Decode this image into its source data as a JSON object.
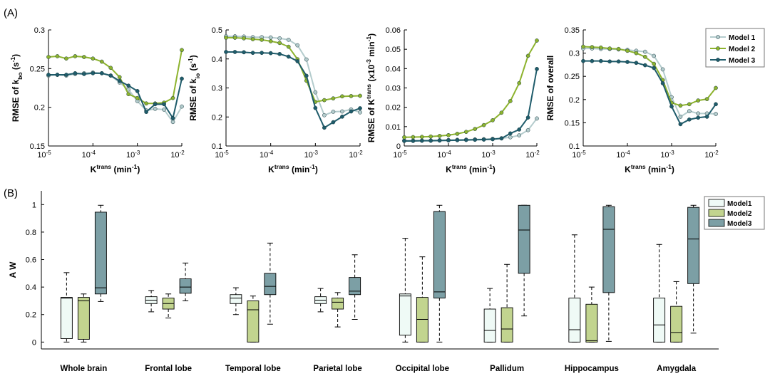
{
  "figure": {
    "panel_a_label": "(A)",
    "panel_b_label": "(B)"
  },
  "chart_data": [
    {
      "type": "line",
      "ylabel": "RMSE of k_bo (s^-1)",
      "xlabel": "K^trans (min^-1)",
      "xscale": "log",
      "xlim": [
        1e-05,
        0.01
      ],
      "ylim": [
        0.15,
        0.3
      ],
      "yticks": [
        "0.15",
        "0.2",
        "0.25",
        "0.3"
      ],
      "xticks": [
        "10^-5",
        "10^-4",
        "10^-3",
        "10^-2"
      ],
      "x": [
        1e-05,
        1.585e-05,
        2.512e-05,
        3.981e-05,
        6.31e-05,
        0.0001,
        0.0001585,
        0.0002512,
        0.0003981,
        0.000631,
        0.001,
        0.001585,
        0.002512,
        0.003981,
        0.00631,
        0.01
      ],
      "series": [
        {
          "name": "Model 1",
          "color": "#b4cccd",
          "values": [
            0.241,
            0.242,
            0.241,
            0.243,
            0.244,
            0.245,
            0.244,
            0.241,
            0.232,
            0.223,
            0.208,
            0.196,
            0.198,
            0.197,
            0.181,
            0.201
          ]
        },
        {
          "name": "Model 2",
          "color": "#8db32e",
          "values": [
            0.265,
            0.266,
            0.263,
            0.266,
            0.265,
            0.263,
            0.259,
            0.251,
            0.239,
            0.217,
            0.212,
            0.205,
            0.205,
            0.206,
            0.212,
            0.274
          ]
        },
        {
          "name": "Model 3",
          "color": "#1f5c6b",
          "values": [
            0.242,
            0.242,
            0.242,
            0.244,
            0.243,
            0.244,
            0.244,
            0.241,
            0.234,
            0.228,
            0.221,
            0.194,
            0.204,
            0.204,
            0.186,
            0.237
          ]
        }
      ]
    },
    {
      "type": "line",
      "ylabel": "RMSE of k_io (s^-1)",
      "xlabel": "K^trans (min^-1)",
      "xscale": "log",
      "xlim": [
        1e-05,
        0.01
      ],
      "ylim": [
        0.1,
        0.5
      ],
      "yticks": [
        "0.1",
        "0.2",
        "0.3",
        "0.4",
        "0.5"
      ],
      "xticks": [
        "10^-5",
        "10^-4",
        "10^-3",
        "10^-2"
      ],
      "x": [
        1e-05,
        1.585e-05,
        2.512e-05,
        3.981e-05,
        6.31e-05,
        0.0001,
        0.0001585,
        0.0002512,
        0.0003981,
        0.000631,
        0.001,
        0.001585,
        0.002512,
        0.003981,
        0.00631,
        0.01
      ],
      "series": [
        {
          "name": "Model 1",
          "color": "#b4cccd",
          "values": [
            0.478,
            0.478,
            0.477,
            0.475,
            0.475,
            0.474,
            0.471,
            0.466,
            0.447,
            0.398,
            0.285,
            0.206,
            0.218,
            0.219,
            0.226,
            0.216
          ]
        },
        {
          "name": "Model 2",
          "color": "#8db32e",
          "values": [
            0.473,
            0.473,
            0.471,
            0.468,
            0.466,
            0.461,
            0.455,
            0.442,
            0.399,
            0.325,
            0.252,
            0.258,
            0.264,
            0.271,
            0.272,
            0.273
          ]
        },
        {
          "name": "Model 3",
          "color": "#1f5c6b",
          "values": [
            0.424,
            0.424,
            0.423,
            0.421,
            0.421,
            0.42,
            0.417,
            0.408,
            0.392,
            0.342,
            0.231,
            0.163,
            0.182,
            0.201,
            0.219,
            0.23
          ]
        }
      ]
    },
    {
      "type": "line",
      "ylabel": "RMSE of K^trans (x10^-3 min^-1)",
      "xlabel": "K^trans (min^-1)",
      "xscale": "log",
      "xlim": [
        1e-05,
        0.01
      ],
      "ylim": [
        0,
        0.06
      ],
      "yticks": [
        "0",
        "0.01",
        "0.02",
        "0.03",
        "0.04",
        "0.05",
        "0.06"
      ],
      "xticks": [
        "10^-5",
        "10^-4",
        "10^-3",
        "10^-2"
      ],
      "x": [
        1e-05,
        1.585e-05,
        2.512e-05,
        3.981e-05,
        6.31e-05,
        0.0001,
        0.0001585,
        0.0002512,
        0.0003981,
        0.000631,
        0.001,
        0.001585,
        0.002512,
        0.003981,
        0.00631,
        0.01
      ],
      "series": [
        {
          "name": "Model 1",
          "color": "#b4cccd",
          "values": [
            0.0028,
            0.0028,
            0.0028,
            0.0029,
            0.003,
            0.0031,
            0.0032,
            0.0033,
            0.0034,
            0.0035,
            0.0037,
            0.004,
            0.0045,
            0.0055,
            0.0082,
            0.0142
          ]
        },
        {
          "name": "Model 2",
          "color": "#8db32e",
          "values": [
            0.0045,
            0.0046,
            0.0047,
            0.0049,
            0.0052,
            0.0056,
            0.0063,
            0.0073,
            0.0088,
            0.0108,
            0.0133,
            0.0172,
            0.0232,
            0.0325,
            0.0466,
            0.0545
          ]
        },
        {
          "name": "Model 3",
          "color": "#1f5c6b",
          "values": [
            0.0026,
            0.0026,
            0.0027,
            0.0027,
            0.0028,
            0.0029,
            0.003,
            0.0031,
            0.0032,
            0.0033,
            0.0035,
            0.0039,
            0.0065,
            0.0085,
            0.0147,
            0.0398
          ]
        }
      ]
    },
    {
      "type": "line",
      "ylabel": "RMSE of overall",
      "xlabel": "K^trans (min^-1)",
      "xscale": "log",
      "xlim": [
        1e-05,
        0.01
      ],
      "ylim": [
        0.1,
        0.35
      ],
      "yticks": [
        "0.1",
        "0.15",
        "0.2",
        "0.25",
        "0.3",
        "0.35"
      ],
      "xticks": [
        "10^-5",
        "10^-4",
        "10^-3",
        "10^-2"
      ],
      "x": [
        1e-05,
        1.585e-05,
        2.512e-05,
        3.981e-05,
        6.31e-05,
        0.0001,
        0.0001585,
        0.0002512,
        0.0003981,
        0.000631,
        0.001,
        0.001585,
        0.002512,
        0.003981,
        0.00631,
        0.01
      ],
      "series": [
        {
          "name": "Model 1",
          "color": "#b4cccd",
          "values": [
            0.31,
            0.31,
            0.309,
            0.309,
            0.308,
            0.307,
            0.305,
            0.303,
            0.294,
            0.265,
            0.205,
            0.163,
            0.175,
            0.17,
            0.17,
            0.169
          ]
        },
        {
          "name": "Model 2",
          "color": "#8db32e",
          "values": [
            0.314,
            0.313,
            0.312,
            0.31,
            0.309,
            0.305,
            0.3,
            0.292,
            0.277,
            0.242,
            0.193,
            0.187,
            0.19,
            0.198,
            0.201,
            0.225
          ]
        },
        {
          "name": "Model 3",
          "color": "#1f5c6b",
          "values": [
            0.283,
            0.283,
            0.283,
            0.282,
            0.282,
            0.281,
            0.279,
            0.274,
            0.268,
            0.235,
            0.185,
            0.147,
            0.157,
            0.161,
            0.163,
            0.19
          ]
        }
      ]
    },
    {
      "type": "box",
      "ylabel": "A W",
      "ylim": [
        -0.05,
        1.1
      ],
      "yticks": [
        "0",
        "0.2",
        "0.4",
        "0.6",
        "0.8",
        "1"
      ],
      "categories": [
        "Whole brain",
        "Frontal lobe",
        "Temporal lobe",
        "Parietal lobe",
        "Occipital lobe",
        "Pallidum",
        "Hippocampus",
        "Amygdala"
      ],
      "series": [
        {
          "name": "Model1",
          "color": "#effaf6",
          "boxes": [
            {
              "min": 0.0,
              "q1": 0.025,
              "median": 0.32,
              "q3": 0.325,
              "max": 0.505
            },
            {
              "min": 0.22,
              "q1": 0.28,
              "median": 0.305,
              "q3": 0.33,
              "max": 0.375
            },
            {
              "min": 0.2,
              "q1": 0.28,
              "median": 0.32,
              "q3": 0.345,
              "max": 0.395
            },
            {
              "min": 0.22,
              "q1": 0.28,
              "median": 0.305,
              "q3": 0.33,
              "max": 0.39
            },
            {
              "min": 0.0,
              "q1": 0.05,
              "median": 0.335,
              "q3": 0.35,
              "max": 0.755
            },
            {
              "min": 0.0,
              "q1": 0.0,
              "median": 0.085,
              "q3": 0.24,
              "max": 0.39
            },
            {
              "min": 0.0,
              "q1": 0.0,
              "median": 0.09,
              "q3": 0.32,
              "max": 0.78
            },
            {
              "min": 0.0,
              "q1": 0.0,
              "median": 0.125,
              "q3": 0.32,
              "max": 0.71
            }
          ]
        },
        {
          "name": "Model2",
          "color": "#c2d48f",
          "boxes": [
            {
              "min": 0.0,
              "q1": 0.02,
              "median": 0.3,
              "q3": 0.325,
              "max": 0.35
            },
            {
              "min": 0.175,
              "q1": 0.24,
              "median": 0.28,
              "q3": 0.32,
              "max": 0.35
            },
            {
              "min": 0.0,
              "q1": 0.0,
              "median": 0.235,
              "q3": 0.3,
              "max": 0.335
            },
            {
              "min": 0.11,
              "q1": 0.24,
              "median": 0.29,
              "q3": 0.32,
              "max": 0.36
            },
            {
              "min": 0.0,
              "q1": 0.0,
              "median": 0.165,
              "q3": 0.325,
              "max": 0.62
            },
            {
              "min": 0.0,
              "q1": 0.0,
              "median": 0.095,
              "q3": 0.25,
              "max": 0.565
            },
            {
              "min": 0.0,
              "q1": 0.0,
              "median": 0.01,
              "q3": 0.275,
              "max": 0.4
            },
            {
              "min": 0.0,
              "q1": 0.0,
              "median": 0.07,
              "q3": 0.26,
              "max": 0.44
            }
          ]
        },
        {
          "name": "Model3",
          "color": "#7c9fa5",
          "boxes": [
            {
              "min": 0.295,
              "q1": 0.35,
              "median": 0.395,
              "q3": 0.945,
              "max": 0.995
            },
            {
              "min": 0.3,
              "q1": 0.355,
              "median": 0.4,
              "q3": 0.46,
              "max": 0.575
            },
            {
              "min": 0.13,
              "q1": 0.345,
              "median": 0.405,
              "q3": 0.5,
              "max": 0.72
            },
            {
              "min": 0.165,
              "q1": 0.345,
              "median": 0.37,
              "q3": 0.47,
              "max": 0.635
            },
            {
              "min": 0.0,
              "q1": 0.32,
              "median": 0.365,
              "q3": 0.95,
              "max": 0.995
            },
            {
              "min": 0.19,
              "q1": 0.5,
              "median": 0.815,
              "q3": 0.995,
              "max": 0.995
            },
            {
              "min": 0.005,
              "q1": 0.36,
              "median": 0.82,
              "q3": 0.985,
              "max": 0.995
            },
            {
              "min": 0.065,
              "q1": 0.425,
              "median": 0.75,
              "q3": 0.98,
              "max": 0.995
            }
          ]
        }
      ]
    }
  ]
}
